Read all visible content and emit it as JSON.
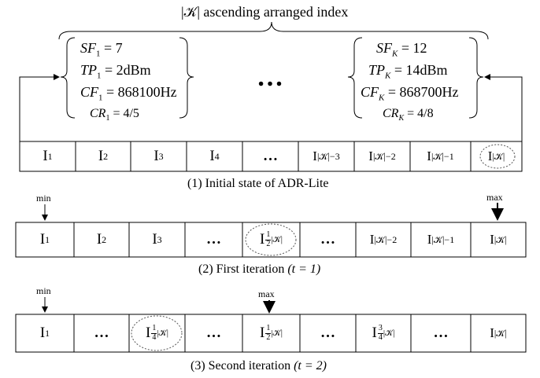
{
  "title": "|𝒦| ascending arranged index",
  "param_first": {
    "sf": "SF",
    "sf_sub": "1",
    "sf_val": "= 7",
    "tp": "TP",
    "tp_sub": "1",
    "tp_val": "= 2dBm",
    "cf": "CF",
    "cf_sub": "1",
    "cf_val": "= 868100Hz",
    "cr": "CR",
    "cr_sub": "1",
    "cr_val": "= 4/5"
  },
  "param_last": {
    "sf": "SF",
    "sf_sub": "K",
    "sf_val": "= 12",
    "tp": "TP",
    "tp_sub": "K",
    "tp_val": "= 14dBm",
    "cf": "CF",
    "cf_sub": "K",
    "cf_val": "= 868700Hz",
    "cr": "CR",
    "cr_sub": "K",
    "cr_val": "= 4/8"
  },
  "ellipsis_mid": "…",
  "row1": {
    "cells": [
      {
        "base": "I",
        "sub": "1"
      },
      {
        "base": "I",
        "sub": "2"
      },
      {
        "base": "I",
        "sub": "3"
      },
      {
        "base": "I",
        "sub": "4"
      },
      {
        "base": "…",
        "sub": ""
      },
      {
        "base": "I",
        "sub": "|𝒦|−3"
      },
      {
        "base": "I",
        "sub": "|𝒦|−2"
      },
      {
        "base": "I",
        "sub": "|𝒦|−1"
      },
      {
        "base": "I",
        "sub": "|𝒦|"
      }
    ],
    "caption": "(1) Initial state of ADR-Lite"
  },
  "row2": {
    "cells": [
      {
        "base": "I",
        "sub": "1"
      },
      {
        "base": "I",
        "sub": "2"
      },
      {
        "base": "I",
        "sub": "3"
      },
      {
        "base": "…",
        "sub": ""
      },
      {
        "base": "I",
        "num": "1",
        "den": "2",
        "rest": "|𝒦|"
      },
      {
        "base": "…",
        "sub": ""
      },
      {
        "base": "I",
        "sub": "|𝒦|−2"
      },
      {
        "base": "I",
        "sub": "|𝒦|−1"
      },
      {
        "base": "I",
        "sub": "|𝒦|"
      }
    ],
    "min_label": "min",
    "max_label": "max",
    "caption_text": "(2) First iteration",
    "caption_math": "(t = 1)"
  },
  "row3": {
    "cells": [
      {
        "base": "I",
        "sub": "1"
      },
      {
        "base": "…",
        "sub": ""
      },
      {
        "base": "I",
        "num": "1",
        "den": "4",
        "rest": "|𝒦|"
      },
      {
        "base": "…",
        "sub": ""
      },
      {
        "base": "I",
        "num": "1",
        "den": "2",
        "rest": "|𝒦|"
      },
      {
        "base": "…",
        "sub": ""
      },
      {
        "base": "I",
        "num": "3",
        "den": "4",
        "rest": "|𝒦|"
      },
      {
        "base": "…",
        "sub": ""
      },
      {
        "base": "I",
        "sub": "|𝒦|"
      }
    ],
    "min_label": "min",
    "max_label": "max",
    "caption_text": "(3) Second iteration",
    "caption_math": "(t = 2)"
  }
}
